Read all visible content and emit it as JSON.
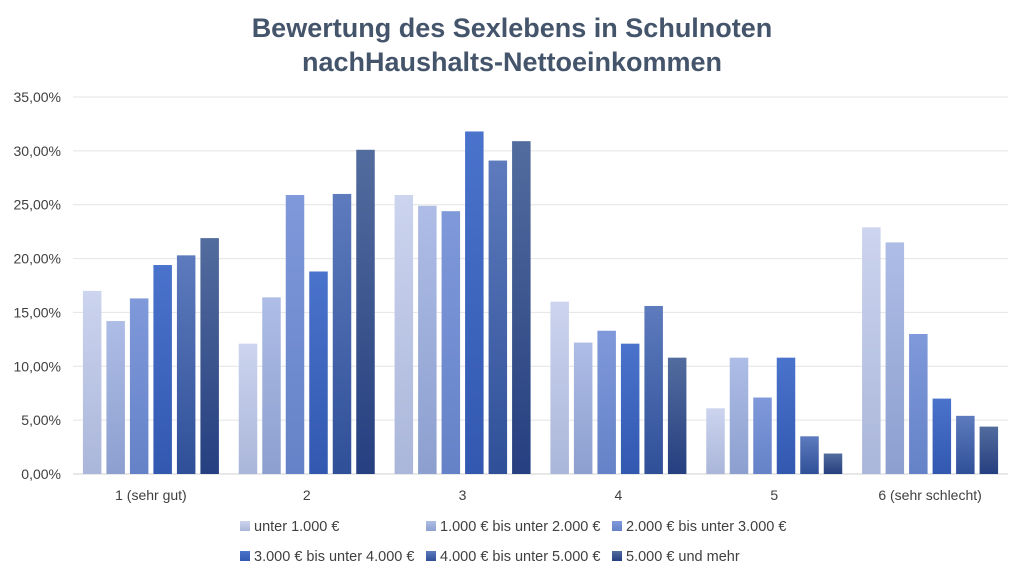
{
  "chart_data": {
    "type": "bar",
    "title_lines": [
      "Bewertung des Sexlebens in Schulnoten",
      "nachHaushalts-Nettoeinkommen"
    ],
    "xlabel": "",
    "ylabel": "",
    "categories": [
      "1 (sehr gut)",
      "2",
      "3",
      "4",
      "5",
      "6 (sehr schlecht)"
    ],
    "y_ticks": [
      "0,00%",
      "5,00%",
      "10,00%",
      "15,00%",
      "20,00%",
      "25,00%",
      "30,00%",
      "35,00%"
    ],
    "ylim": [
      0,
      35
    ],
    "grid": true,
    "legend_position": "bottom",
    "series": [
      {
        "name": "unter 1.000 €",
        "values": [
          17.0,
          12.1,
          25.9,
          16.0,
          6.1,
          22.9
        ],
        "color_light": "#ccd4ee",
        "color_dark": "#aab6da"
      },
      {
        "name": "1.000 € bis unter 2.000 €",
        "values": [
          14.2,
          16.4,
          24.9,
          12.2,
          10.8,
          21.5
        ],
        "color_light": "#aebde6",
        "color_dark": "#8c9fcf"
      },
      {
        "name": "2.000 € bis unter 3.000 €",
        "values": [
          16.3,
          25.9,
          24.4,
          13.3,
          7.1,
          13.0
        ],
        "color_light": "#7f99da",
        "color_dark": "#6582c8"
      },
      {
        "name": "3.000 € bis unter 4.000 €",
        "values": [
          19.4,
          18.8,
          31.8,
          12.1,
          10.8,
          7.0
        ],
        "color_light": "#4a73cc",
        "color_dark": "#3258b0"
      },
      {
        "name": "4.000 € bis unter 5.000 €",
        "values": [
          20.3,
          26.0,
          29.1,
          15.6,
          3.5,
          5.4
        ],
        "color_light": "#5d7bbd",
        "color_dark": "#2f4f98"
      },
      {
        "name": "5.000 € und mehr",
        "values": [
          21.9,
          30.1,
          30.9,
          10.8,
          1.9,
          4.4
        ],
        "color_light": "#536c9e",
        "color_dark": "#253f80"
      }
    ]
  }
}
